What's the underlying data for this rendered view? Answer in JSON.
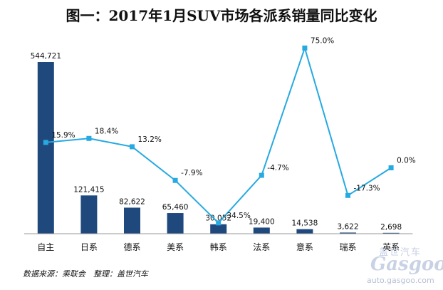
{
  "chart_data": {
    "type": "bar+line",
    "title": "图一：2017年1月SUV市场各派系销量同比变化",
    "categories": [
      "自主",
      "日系",
      "德系",
      "美系",
      "韩系",
      "法系",
      "意系",
      "瑞系",
      "英系"
    ],
    "series": [
      {
        "type": "bar",
        "values": [
          544721,
          121415,
          82622,
          65460,
          30052,
          19400,
          14538,
          3622,
          2698
        ],
        "labels": [
          "544,721",
          "121,415",
          "82,622",
          "65,460",
          "30,052",
          "19,400",
          "14,538",
          "3,622",
          "2,698"
        ],
        "color": "#1f497d"
      },
      {
        "type": "line",
        "values": [
          15.9,
          18.4,
          13.2,
          -7.9,
          -34.5,
          -4.7,
          75.0,
          -17.3,
          0.0
        ],
        "labels": [
          "15.9%",
          "18.4%",
          "13.2%",
          "-7.9%",
          "-34.5%",
          "-4.7%",
          "75.0%",
          "-17.3%",
          "0.0%"
        ],
        "color": "#27a9e1"
      }
    ],
    "grid": false,
    "legend": "none"
  },
  "source_note": "数据来源：乘联会　整理：盖世汽车",
  "watermark": {
    "cn": "盖世汽车",
    "logo": "Gasgoo",
    "url": "auto.gasgoo.com"
  }
}
